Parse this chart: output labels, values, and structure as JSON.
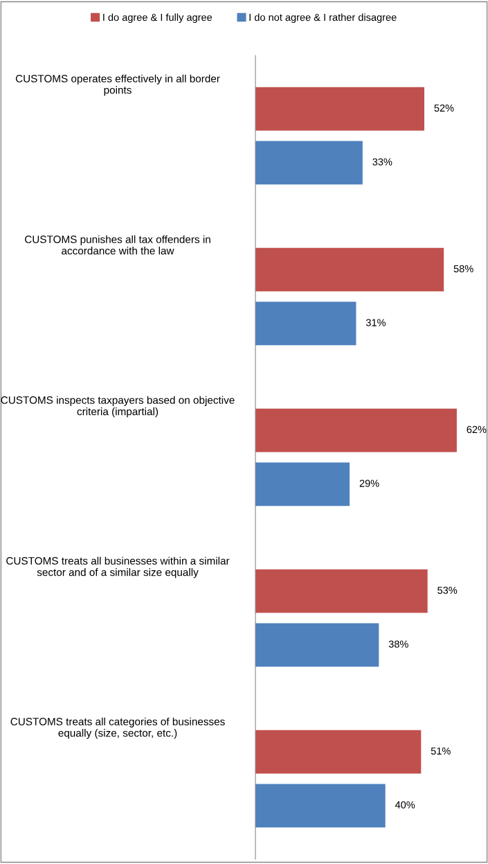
{
  "chart_data": {
    "type": "bar",
    "orientation": "horizontal",
    "legend": "top",
    "categories": [
      "CUSTOMS operates effectively in all border points",
      "CUSTOMS punishes all tax offenders in accordance with the law",
      "CUSTOMS inspects taxpayers based on objective criteria (impartial)",
      "CUSTOMS treats all businesses within a similar sector and of a similar size equally",
      "CUSTOMS treats all categories of businesses equally (size, sector, etc.)"
    ],
    "series": [
      {
        "name": "I do agree & I fully agree",
        "color": "#c0504d",
        "values": [
          52,
          58,
          62,
          53,
          51
        ],
        "value_labels": [
          "52%",
          "58%",
          "62%",
          "53%",
          "51%"
        ]
      },
      {
        "name": "I do not agree & I rather disagree",
        "color": "#4f81bd",
        "values": [
          33,
          31,
          29,
          38,
          40
        ],
        "value_labels": [
          "33%",
          "31%",
          "29%",
          "38%",
          "40%"
        ]
      }
    ]
  }
}
